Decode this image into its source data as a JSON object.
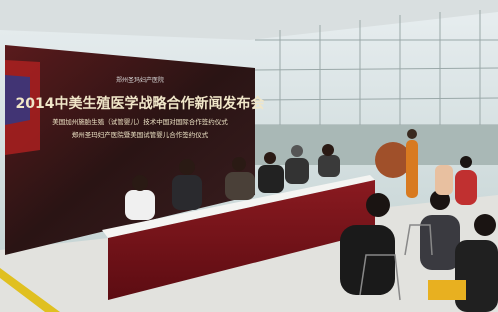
{
  "banner": {
    "logo": "郑州圣玛妇产医院",
    "title": "2014中美生殖医学战略合作新闻发布会",
    "subtitle": "美国加州施胎生殖（试管婴儿）技术中国对国际合作签约仪式",
    "subtitle2": "郑州圣玛妇产医院暨美国试管婴儿合作签约仪式"
  }
}
